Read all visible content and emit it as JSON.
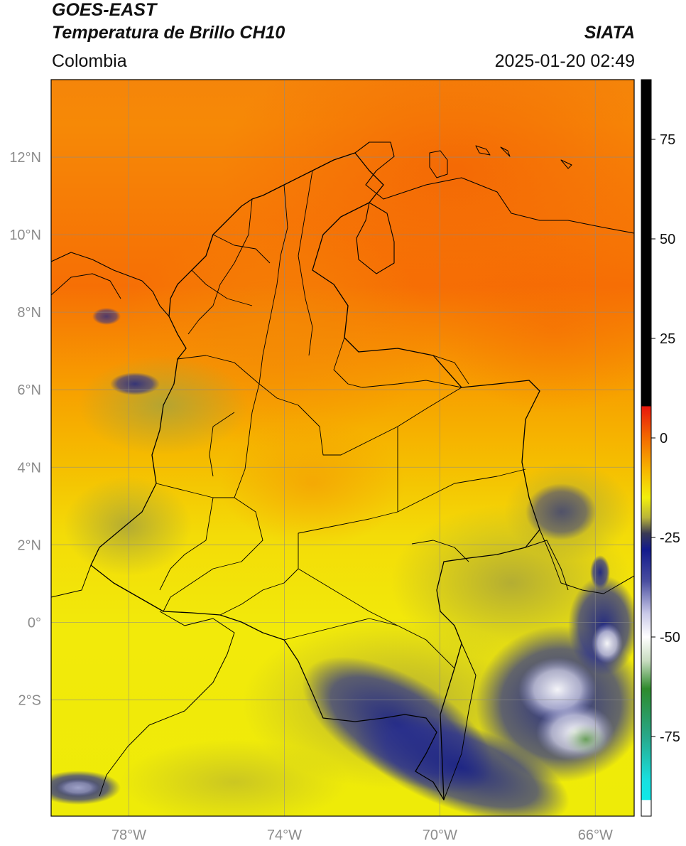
{
  "header": {
    "title_line1": "GOES-EAST",
    "title_line2": "Temperatura de Brillo CH10",
    "organization": "SIATA",
    "region": "Colombia",
    "timestamp": "2025-01-20 02:49"
  },
  "map": {
    "lon_range": [
      -80.0,
      -65.0
    ],
    "lat_range": [
      -5.0,
      14.0
    ],
    "gridlines": true,
    "lat_ticks": [
      {
        "value": 12,
        "label": "12°N"
      },
      {
        "value": 10,
        "label": "10°N"
      },
      {
        "value": 8,
        "label": "8°N"
      },
      {
        "value": 6,
        "label": "6°N"
      },
      {
        "value": 4,
        "label": "4°N"
      },
      {
        "value": 2,
        "label": "2°N"
      },
      {
        "value": 0,
        "label": "0°"
      },
      {
        "value": -2,
        "label": "2°S"
      }
    ],
    "lon_ticks": [
      {
        "value": -78,
        "label": "78°W"
      },
      {
        "value": -74,
        "label": "74°W"
      },
      {
        "value": -70,
        "label": "70°W"
      },
      {
        "value": -66,
        "label": "66°W"
      }
    ],
    "colors": {
      "warm_north": "#f66a06",
      "mid": "#f7a300",
      "south": "#f0ec08",
      "cold_cloud": "#1d2582",
      "coldest": "#ffffff",
      "border": "#000000"
    }
  },
  "colorbar": {
    "range": [
      -95,
      90
    ],
    "ticks": [
      {
        "value": 75,
        "label": "75"
      },
      {
        "value": 50,
        "label": "50"
      },
      {
        "value": 25,
        "label": "25"
      },
      {
        "value": 0,
        "label": "0"
      },
      {
        "value": -25,
        "label": "-25"
      },
      {
        "value": -50,
        "label": "-50"
      },
      {
        "value": -75,
        "label": "-75"
      }
    ],
    "stops": [
      {
        "value": 90,
        "color": "#000000"
      },
      {
        "value": 8,
        "color": "#000000"
      },
      {
        "value": 7.9,
        "color": "#e8160c"
      },
      {
        "value": 0,
        "color": "#f36a00"
      },
      {
        "value": -8,
        "color": "#f7b500"
      },
      {
        "value": -15,
        "color": "#f2ef0c"
      },
      {
        "value": -20,
        "color": "#b9b43a"
      },
      {
        "value": -24,
        "color": "#3a3a55"
      },
      {
        "value": -28,
        "color": "#121a8c"
      },
      {
        "value": -36,
        "color": "#4a4ea0"
      },
      {
        "value": -44,
        "color": "#c8c8e8"
      },
      {
        "value": -50,
        "color": "#ffffff"
      },
      {
        "value": -56,
        "color": "#c8dcc0"
      },
      {
        "value": -63,
        "color": "#2e8a2c"
      },
      {
        "value": -75,
        "color": "#28a88a"
      },
      {
        "value": -86,
        "color": "#18e0e0"
      },
      {
        "value": -90.9,
        "color": "#10e8e8"
      },
      {
        "value": -91,
        "color": "#ffffff"
      },
      {
        "value": -95,
        "color": "#ffffff"
      }
    ]
  }
}
